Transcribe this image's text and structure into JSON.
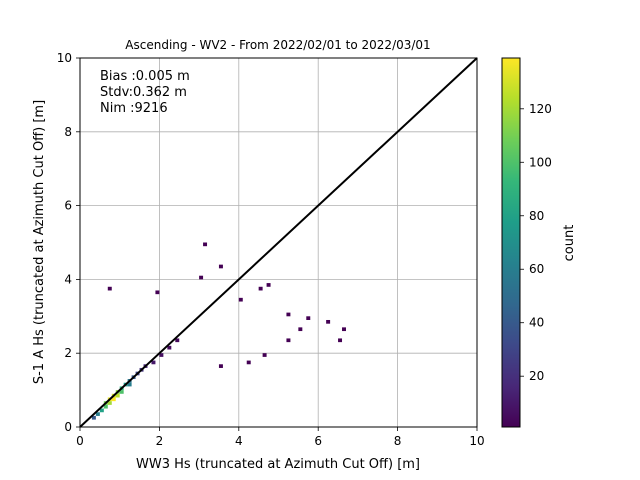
{
  "chart_data": {
    "type": "heatmap",
    "title": "Ascending - WV2 - From 2022/02/01 to 2022/03/01",
    "xlabel": "WW3 Hs (truncated at Azimuth Cut Off) [m]",
    "ylabel": "S-1 A Hs (truncated at Azimuth Cut Off) [m]",
    "xlim": [
      0,
      10
    ],
    "ylim": [
      0,
      10
    ],
    "xticks": [
      "0",
      "2",
      "4",
      "6",
      "8",
      "10"
    ],
    "yticks": [
      "0",
      "2",
      "4",
      "6",
      "8",
      "10"
    ],
    "grid": true,
    "bin_size": 0.1,
    "reference_line": {
      "x": [
        0,
        10
      ],
      "y": [
        0,
        10
      ],
      "color": "#000000"
    },
    "annotations": [
      "Bias :0.005 m",
      "Stdv:0.362 m",
      "Nim :9216"
    ],
    "stats": {
      "bias_m": 0.005,
      "stdv_m": 0.362,
      "n": 9216
    },
    "colorbar": {
      "label": "count",
      "min": 1,
      "max": 139,
      "ticks": [
        "20",
        "40",
        "60",
        "80",
        "100",
        "120"
      ],
      "colormap": "viridis",
      "colors": [
        "#440154",
        "#482878",
        "#3e4989",
        "#31688e",
        "#26828e",
        "#1f9e89",
        "#35b779",
        "#6ece58",
        "#b5de2b",
        "#fde725"
      ]
    },
    "cells": [
      {
        "x": 0.3,
        "y": 0.2,
        "count": 40
      },
      {
        "x": 0.4,
        "y": 0.3,
        "count": 60
      },
      {
        "x": 0.5,
        "y": 0.4,
        "count": 80
      },
      {
        "x": 0.6,
        "y": 0.5,
        "count": 100
      },
      {
        "x": 0.6,
        "y": 0.6,
        "count": 110
      },
      {
        "x": 0.7,
        "y": 0.6,
        "count": 120
      },
      {
        "x": 0.7,
        "y": 0.7,
        "count": 135
      },
      {
        "x": 0.8,
        "y": 0.7,
        "count": 139
      },
      {
        "x": 0.8,
        "y": 0.8,
        "count": 130
      },
      {
        "x": 0.9,
        "y": 0.8,
        "count": 125
      },
      {
        "x": 0.9,
        "y": 0.9,
        "count": 115
      },
      {
        "x": 1.0,
        "y": 0.9,
        "count": 100
      },
      {
        "x": 1.0,
        "y": 1.0,
        "count": 90
      },
      {
        "x": 1.1,
        "y": 1.1,
        "count": 75
      },
      {
        "x": 1.2,
        "y": 1.1,
        "count": 60
      },
      {
        "x": 1.2,
        "y": 1.2,
        "count": 55
      },
      {
        "x": 1.3,
        "y": 1.3,
        "count": 40
      },
      {
        "x": 1.4,
        "y": 1.4,
        "count": 30
      },
      {
        "x": 1.5,
        "y": 1.5,
        "count": 22
      },
      {
        "x": 1.6,
        "y": 1.6,
        "count": 16
      },
      {
        "x": 1.8,
        "y": 1.7,
        "count": 10
      },
      {
        "x": 2.0,
        "y": 1.9,
        "count": 7
      },
      {
        "x": 2.2,
        "y": 2.1,
        "count": 5
      },
      {
        "x": 2.4,
        "y": 2.3,
        "count": 4
      },
      {
        "x": 0.7,
        "y": 3.7,
        "count": 1
      },
      {
        "x": 1.9,
        "y": 3.6,
        "count": 1
      },
      {
        "x": 3.0,
        "y": 4.0,
        "count": 1
      },
      {
        "x": 3.1,
        "y": 4.9,
        "count": 1
      },
      {
        "x": 3.5,
        "y": 4.3,
        "count": 1
      },
      {
        "x": 4.0,
        "y": 3.4,
        "count": 1
      },
      {
        "x": 4.5,
        "y": 3.7,
        "count": 1
      },
      {
        "x": 4.7,
        "y": 3.8,
        "count": 1
      },
      {
        "x": 5.2,
        "y": 3.0,
        "count": 1
      },
      {
        "x": 5.5,
        "y": 2.6,
        "count": 1
      },
      {
        "x": 5.7,
        "y": 2.9,
        "count": 1
      },
      {
        "x": 6.2,
        "y": 2.8,
        "count": 1
      },
      {
        "x": 6.5,
        "y": 2.3,
        "count": 1
      },
      {
        "x": 6.6,
        "y": 2.6,
        "count": 1
      },
      {
        "x": 5.2,
        "y": 2.3,
        "count": 1
      },
      {
        "x": 4.6,
        "y": 1.9,
        "count": 1
      },
      {
        "x": 4.2,
        "y": 1.7,
        "count": 1
      },
      {
        "x": 3.5,
        "y": 1.6,
        "count": 1
      }
    ]
  }
}
